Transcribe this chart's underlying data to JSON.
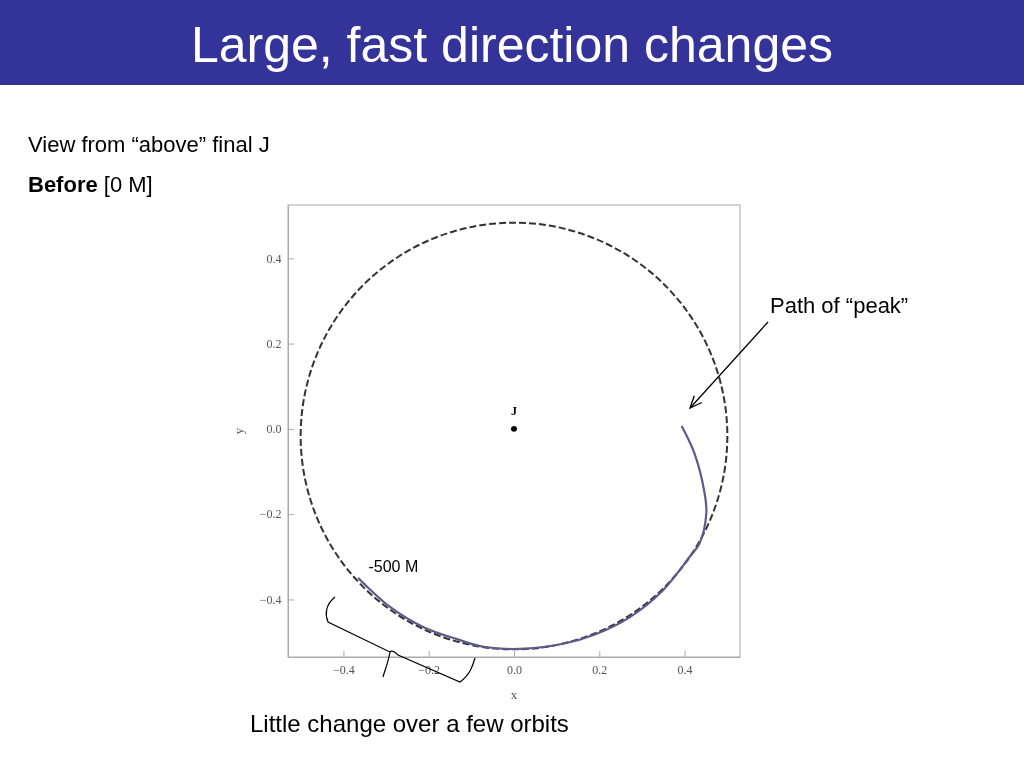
{
  "chart_data": {
    "type": "line",
    "title": "Large, fast direction changes",
    "subtitle": "View from “above” final J",
    "xlabel": "x",
    "ylabel": "y",
    "xlim": [
      -0.53,
      0.53
    ],
    "ylim": [
      -0.535,
      0.525
    ],
    "xticks": [
      {
        "value": -0.4,
        "label": "−0.4"
      },
      {
        "value": -0.2,
        "label": "−0.2"
      },
      {
        "value": 0,
        "label": "0.0"
      },
      {
        "value": 0.2,
        "label": "0.2"
      },
      {
        "value": 0.4,
        "label": "0.4"
      }
    ],
    "yticks": [
      {
        "value": -0.4,
        "label": "−0.4"
      },
      {
        "value": -0.2,
        "label": "−0.2"
      },
      {
        "value": 0,
        "label": "0.0"
      },
      {
        "value": 0.2,
        "label": "0.2"
      },
      {
        "value": 0.4,
        "label": "0.4"
      }
    ],
    "grid": false,
    "marker": "none",
    "series": [
      {
        "line_style": "solid",
        "color": "#5b5b8c",
        "x": [
          -0.364,
          -0.352,
          -0.29,
          -0.212,
          -0.134,
          -0.072,
          0.014,
          0.115,
          0.193,
          0.271,
          0.349,
          0.412,
          0.435,
          0.451,
          0.447,
          0.423,
          0.394
        ],
        "values": [
          -0.351,
          -0.363,
          -0.418,
          -0.465,
          -0.493,
          -0.511,
          -0.516,
          -0.504,
          -0.481,
          -0.442,
          -0.379,
          -0.3,
          -0.269,
          -0.198,
          -0.151,
          -0.057,
          0.005
        ]
      },
      {
        "type": "scatter",
        "name": "J",
        "marker": "circle",
        "color": "#000000",
        "x": [
          0
        ],
        "values": [
          0
        ]
      }
    ],
    "annotations": [
      "Before [0 M]",
      "Path of “peak”",
      {
        "text": "-500 M",
        "x": -0.36,
        "y": -0.35
      },
      "Little change over a few orbits"
    ]
  }
}
